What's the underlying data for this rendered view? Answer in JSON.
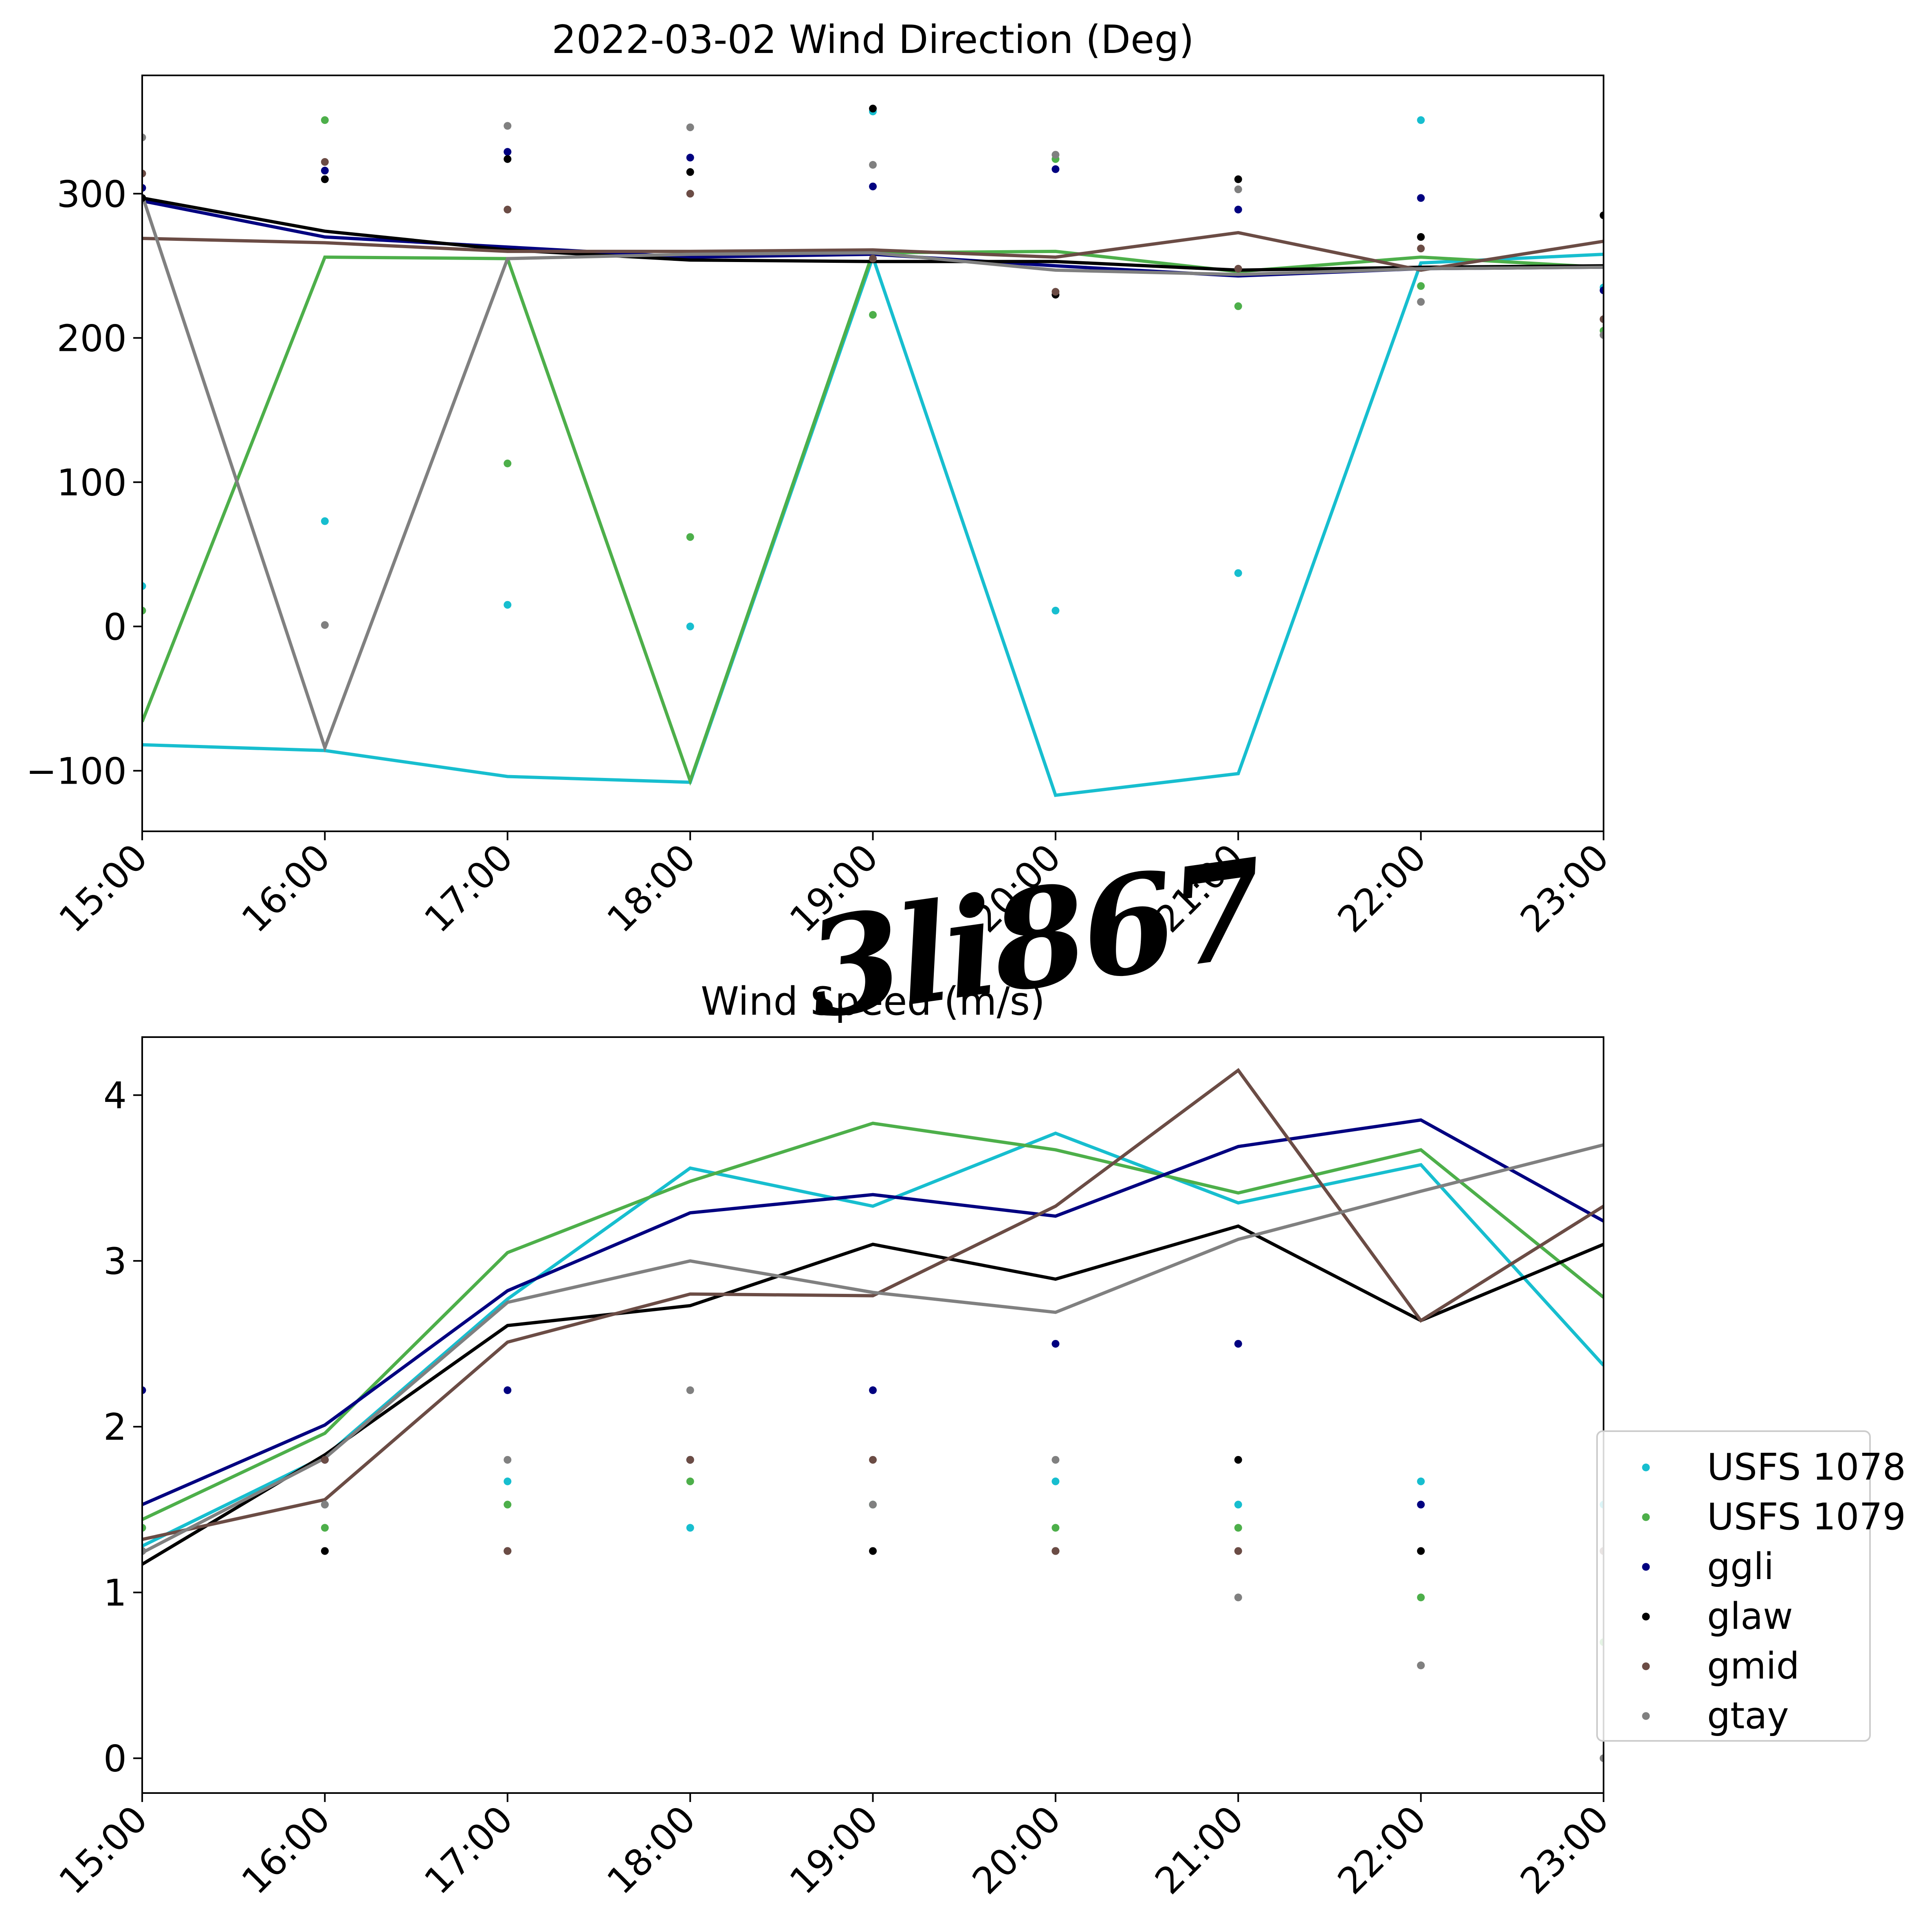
{
  "watermark": "3li867",
  "colors": {
    "USFS 1078": "#17becf",
    "USFS 1079": "#4daf4a",
    "ggli": "#000080",
    "glaw": "#000000",
    "gmid": "#6b4c45",
    "gtay": "#808080"
  },
  "chart_data": [
    {
      "type": "line",
      "title": "2022-03-02 Wind Direction (Deg)",
      "xlabel": "",
      "ylabel": "",
      "categories": [
        "15:00",
        "16:00",
        "17:00",
        "18:00",
        "19:00",
        "20:00",
        "21:00",
        "22:00",
        "23:00"
      ],
      "ylim": [
        -142,
        382
      ],
      "yticks": [
        -100,
        0,
        100,
        200,
        300
      ],
      "ytick_labels": [
        "−100",
        "0",
        "100",
        "200",
        "300"
      ],
      "grid": false,
      "series": [
        {
          "name": "USFS 1078",
          "line": [
            -82,
            -86,
            -104,
            -108,
            256,
            -117,
            -102,
            252,
            258
          ],
          "points": [
            28,
            73,
            15,
            0,
            357,
            11,
            37,
            351,
            235
          ]
        },
        {
          "name": "USFS 1079",
          "line": [
            -66,
            256,
            255,
            -107,
            259,
            260,
            246,
            256,
            249
          ],
          "points": [
            11,
            351,
            113,
            62,
            216,
            324,
            222,
            236,
            205
          ]
        },
        {
          "name": "ggli",
          "line": [
            295,
            270,
            263,
            256,
            258,
            250,
            243,
            248,
            249
          ],
          "points": [
            304,
            316,
            329,
            325,
            305,
            317,
            289,
            297,
            233
          ]
        },
        {
          "name": "glaw",
          "line": [
            297,
            274,
            261,
            254,
            253,
            253,
            247,
            249,
            250
          ],
          "points": [
            297,
            310,
            324,
            315,
            359,
            230,
            310,
            270,
            285
          ]
        },
        {
          "name": "gmid",
          "line": [
            269,
            266,
            260,
            260,
            261,
            256,
            273,
            247,
            267
          ],
          "points": [
            314,
            322,
            289,
            300,
            255,
            232,
            248,
            262,
            213
          ]
        },
        {
          "name": "gtay",
          "line": [
            299,
            -84,
            255,
            258,
            259,
            247,
            244,
            248,
            249
          ],
          "points": [
            339,
            1,
            347,
            346,
            320,
            327,
            303,
            225,
            202
          ]
        }
      ]
    },
    {
      "type": "line",
      "title": "Wind Speed (m/s)",
      "xlabel": "",
      "ylabel": "",
      "categories": [
        "15:00",
        "16:00",
        "17:00",
        "18:00",
        "19:00",
        "20:00",
        "21:00",
        "22:00",
        "23:00"
      ],
      "ylim": [
        -0.21,
        4.35
      ],
      "yticks": [
        0,
        1,
        2,
        3,
        4
      ],
      "ytick_labels": [
        "0",
        "1",
        "2",
        "3",
        "4"
      ],
      "grid": false,
      "legend_position": "right",
      "series": [
        {
          "name": "USFS 1078",
          "line": [
            1.28,
            1.82,
            2.77,
            3.56,
            3.33,
            3.77,
            3.35,
            3.58,
            2.37
          ],
          "points": [
            1.39,
            1.53,
            1.67,
            1.39,
            1.53,
            1.67,
            1.53,
            1.67,
            1.53
          ]
        },
        {
          "name": "USFS 1079",
          "line": [
            1.44,
            1.96,
            3.05,
            3.48,
            3.83,
            3.67,
            3.41,
            3.67,
            2.78
          ],
          "points": [
            1.39,
            1.39,
            1.53,
            1.67,
            1.53,
            1.39,
            1.39,
            0.97,
            0.7
          ]
        },
        {
          "name": "ggli",
          "line": [
            1.53,
            2.01,
            2.82,
            3.29,
            3.4,
            3.27,
            3.69,
            3.85,
            3.24
          ],
          "points": [
            2.22,
            1.8,
            2.22,
            1.8,
            2.22,
            2.5,
            2.5,
            1.53,
            1.25
          ]
        },
        {
          "name": "glaw",
          "line": [
            1.17,
            1.83,
            2.61,
            2.73,
            3.1,
            2.89,
            3.21,
            2.64,
            3.1
          ],
          "points": [
            1.25,
            1.25,
            1.25,
            1.8,
            1.25,
            1.25,
            1.8,
            1.25,
            1.25
          ]
        },
        {
          "name": "gmid",
          "line": [
            1.32,
            1.56,
            2.51,
            2.8,
            2.79,
            3.33,
            4.15,
            2.64,
            3.33
          ],
          "points": [
            1.25,
            1.8,
            1.25,
            1.8,
            1.8,
            1.25,
            1.25,
            0.56,
            1.25
          ]
        },
        {
          "name": "gtay",
          "line": [
            1.24,
            1.81,
            2.75,
            3.0,
            2.81,
            2.69,
            3.13,
            3.42,
            3.7
          ],
          "points": [
            1.25,
            1.53,
            1.8,
            2.22,
            1.53,
            1.8,
            0.97,
            0.56,
            0.0
          ]
        }
      ]
    }
  ]
}
